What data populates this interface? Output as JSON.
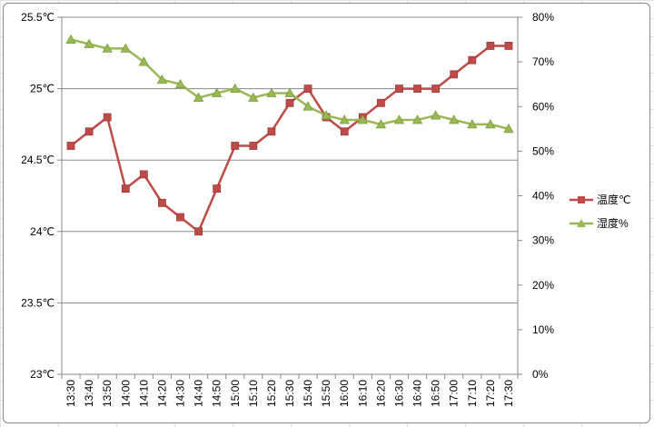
{
  "chart_data": {
    "type": "line",
    "title": "",
    "xlabel": "",
    "ylabel": "",
    "x": [
      "13:30",
      "13:40",
      "13:50",
      "14:00",
      "14:10",
      "14:20",
      "14:30",
      "14:40",
      "14:50",
      "15:00",
      "15:10",
      "15:20",
      "15:30",
      "15:40",
      "15:50",
      "16:00",
      "16:10",
      "16:20",
      "16:30",
      "16:40",
      "16:50",
      "17:00",
      "17:10",
      "17:20",
      "17:30"
    ],
    "y_left": {
      "ylim": [
        23,
        25.5
      ],
      "ticks": [
        23,
        23.5,
        24,
        24.5,
        25,
        25.5
      ],
      "tick_labels": [
        "23℃",
        "23.5℃",
        "24℃",
        "24.5℃",
        "25℃",
        "25.5℃"
      ]
    },
    "y_right": {
      "ylim": [
        0,
        80
      ],
      "ticks": [
        0,
        10,
        20,
        30,
        40,
        50,
        60,
        70,
        80
      ],
      "tick_labels": [
        "0%",
        "10%",
        "20%",
        "30%",
        "40%",
        "50%",
        "60%",
        "70%",
        "80%"
      ]
    },
    "grid": "horizontal major lines",
    "legend_position": "right",
    "series": [
      {
        "name": "温度℃",
        "axis": "left",
        "color": "#be4b48",
        "marker": "square",
        "values": [
          24.6,
          24.7,
          24.8,
          24.3,
          24.4,
          24.2,
          24.1,
          24.0,
          24.3,
          24.6,
          24.6,
          24.7,
          24.9,
          25.0,
          24.8,
          24.7,
          24.8,
          24.9,
          25.0,
          25.0,
          25.0,
          25.1,
          25.2,
          25.3,
          25.3
        ]
      },
      {
        "name": "湿度%",
        "axis": "right",
        "color": "#98b954",
        "marker": "triangle",
        "values": [
          75,
          74,
          73,
          73,
          70,
          66,
          65,
          62,
          63,
          64,
          62,
          63,
          63,
          60,
          58,
          57,
          57,
          56,
          57,
          57,
          58,
          57,
          56,
          56,
          55
        ]
      }
    ]
  }
}
